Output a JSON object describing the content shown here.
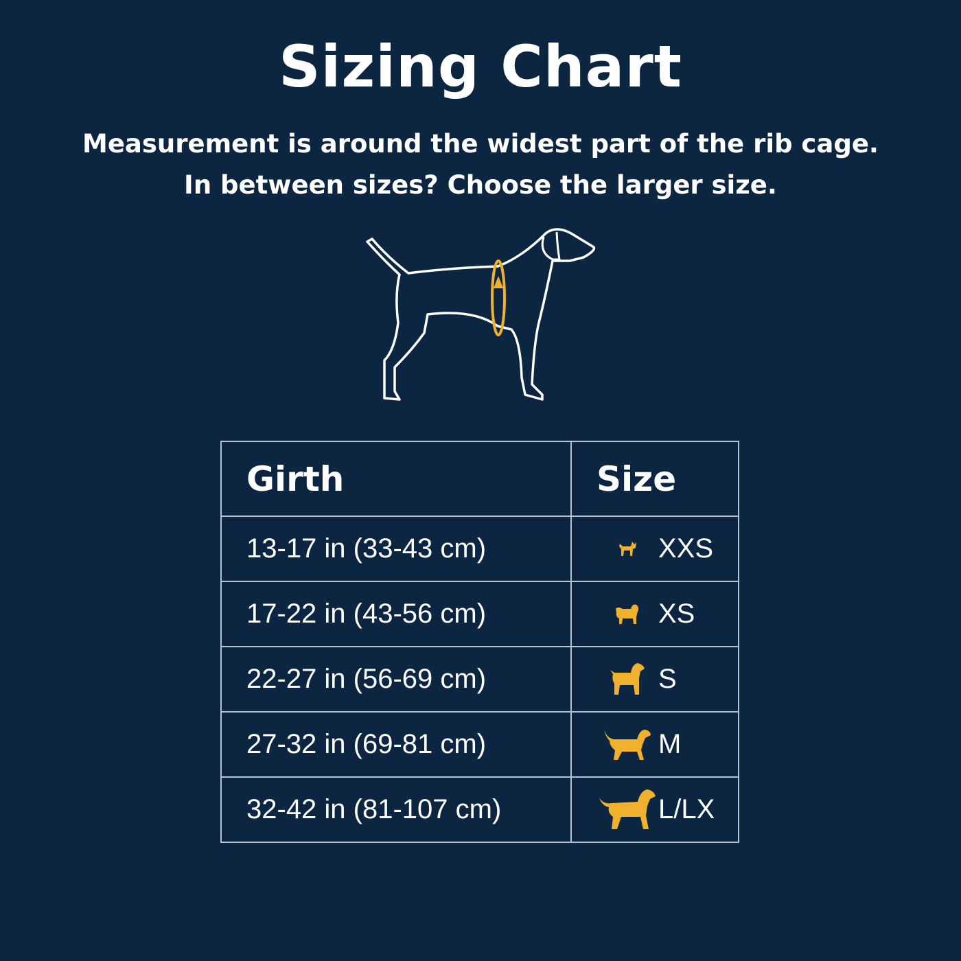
{
  "title": "Sizing Chart",
  "subtitle_line1": "Measurement is around the widest part of the rib cage.",
  "subtitle_line2": "In between sizes? Choose the larger size.",
  "illustration": {
    "icon": "dog-outline-girth-measurement-icon",
    "accent_color": "#f0b12e"
  },
  "table": {
    "headers": {
      "girth": "Girth",
      "size": "Size"
    },
    "rows": [
      {
        "girth": "13-17 in (33-43 cm)",
        "size": "XXS",
        "icon": "chihuahua-icon"
      },
      {
        "girth": "17-22 in (43-56 cm)",
        "size": "XS",
        "icon": "pomeranian-icon"
      },
      {
        "girth": "22-27 in (56-69 cm)",
        "size": "S",
        "icon": "poodle-icon"
      },
      {
        "girth": "27-32 in (69-81 cm)",
        "size": "M",
        "icon": "spaniel-icon"
      },
      {
        "girth": "32-42 in (81-107 cm)",
        "size": "L/LX",
        "icon": "retriever-icon"
      }
    ]
  },
  "colors": {
    "background": "#0c2540",
    "accent": "#f0b12e",
    "text": "#ffffff",
    "border": "#b9c3cf"
  }
}
